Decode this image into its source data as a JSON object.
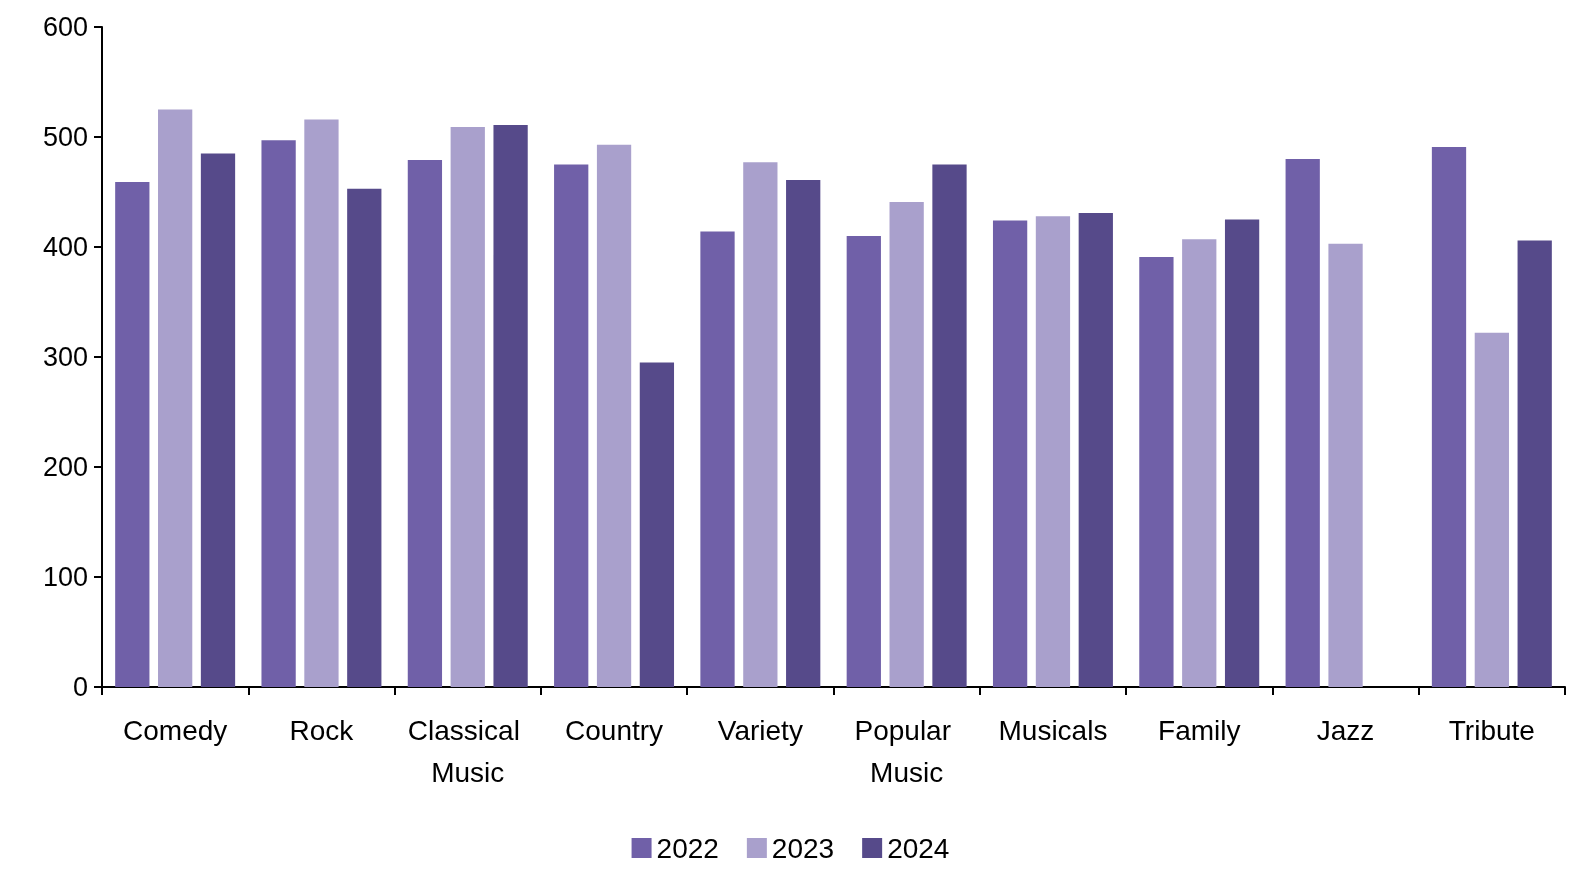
{
  "chart_data": {
    "type": "bar",
    "categories": [
      "Comedy",
      "Rock",
      "Classical Music",
      "Country",
      "Variety",
      "Popular Music",
      "Musicals",
      "Family",
      "Jazz",
      "Tribute"
    ],
    "series": [
      {
        "name": "2022",
        "color": "#7060a8",
        "values": [
          459,
          497,
          479,
          475,
          414,
          410,
          424,
          391,
          480,
          491
        ]
      },
      {
        "name": "2023",
        "color": "#a9a0cc",
        "values": [
          525,
          516,
          509,
          493,
          477,
          441,
          428,
          407,
          403,
          322
        ]
      },
      {
        "name": "2024",
        "color": "#564a8a",
        "values": [
          485,
          453,
          511,
          295,
          461,
          475,
          431,
          425,
          null,
          406
        ]
      }
    ],
    "ylim": [
      0,
      600
    ],
    "yticks": [
      0,
      100,
      200,
      300,
      400,
      500,
      600
    ],
    "grid": false,
    "legend": "bottom"
  }
}
